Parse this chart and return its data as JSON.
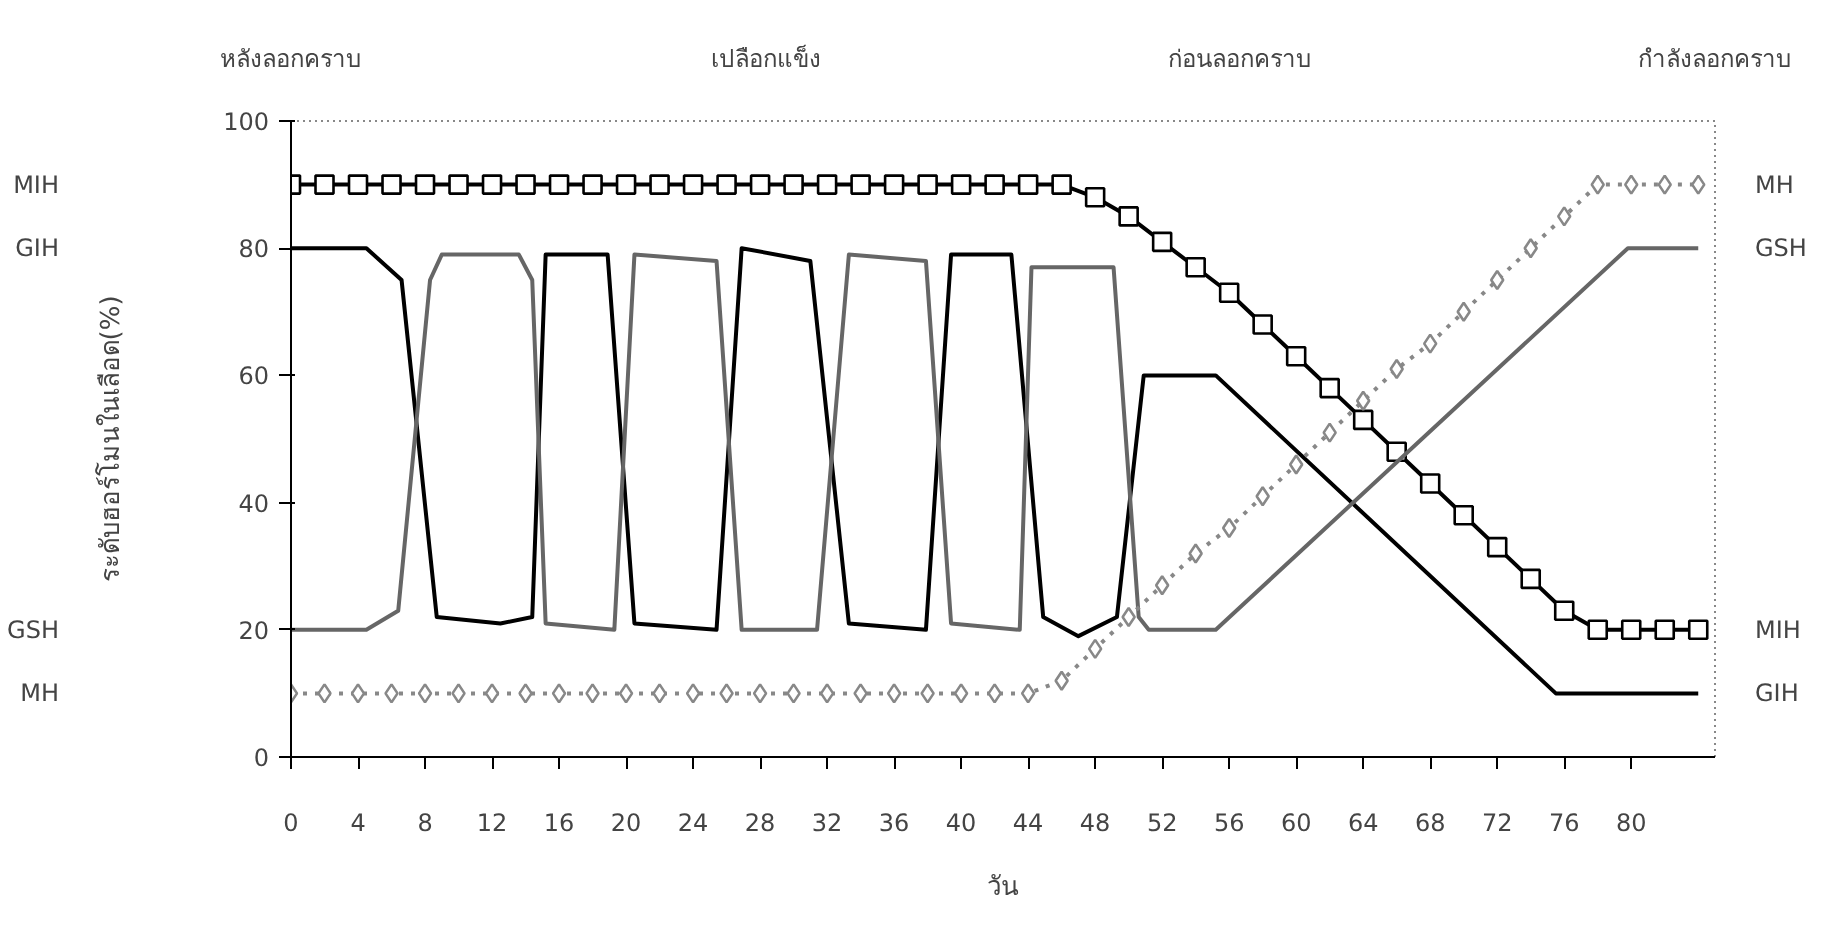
{
  "chart_data": {
    "type": "line",
    "xlabel": "วัน",
    "ylabel": "ระดับฮอร์โมนในเลือด(%)",
    "annotations": [
      "หลังลอกคราบ",
      "เปลือกแข็ง",
      "ก่อนลอกคราบ",
      "กำลังลอกคราบ"
    ],
    "xlim": [
      0,
      85
    ],
    "xticks": [
      0,
      4,
      8,
      12,
      16,
      20,
      24,
      28,
      32,
      36,
      40,
      44,
      48,
      52,
      56,
      60,
      64,
      68,
      72,
      76,
      80
    ],
    "ylim": [
      0,
      100
    ],
    "yticks": [
      0,
      20,
      40,
      60,
      80,
      100
    ],
    "grid": false,
    "series": [
      {
        "name": "MIH",
        "color": "#000000",
        "marker": "square",
        "line_style": "solid",
        "x": [
          0,
          2,
          4,
          6,
          8,
          10,
          12,
          14,
          16,
          18,
          20,
          22,
          24,
          26,
          28,
          30,
          32,
          34,
          36,
          38,
          40,
          42,
          44,
          46,
          48,
          50,
          52,
          54,
          56,
          58,
          60,
          62,
          64,
          66,
          68,
          70,
          72,
          74,
          76,
          78,
          80,
          82,
          84
        ],
        "values": [
          90,
          90,
          90,
          90,
          90,
          90,
          90,
          90,
          90,
          90,
          90,
          90,
          90,
          90,
          90,
          90,
          90,
          90,
          90,
          90,
          90,
          90,
          90,
          90,
          88,
          85,
          81,
          77,
          73,
          68,
          63,
          58,
          53,
          48,
          43,
          38,
          33,
          28,
          23,
          20,
          20,
          20,
          20
        ]
      },
      {
        "name": "GIH",
        "color": "#000000",
        "marker": "none",
        "line_style": "solid",
        "x": [
          0,
          4.5,
          6.6,
          8.7,
          12.5,
          14.4,
          15.2,
          18.9,
          20.5,
          25.4,
          26.9,
          31,
          33.3,
          37.9,
          39.4,
          43,
          44.9,
          47,
          49.3,
          50.9,
          55.2,
          75.5,
          84
        ],
        "values": [
          80,
          80,
          75,
          22,
          21,
          22,
          79,
          79,
          21,
          20,
          80,
          78,
          21,
          20,
          79,
          79,
          22,
          19,
          22,
          60,
          60,
          10,
          10
        ]
      },
      {
        "name": "GSH",
        "color": "#666666",
        "marker": "none",
        "line_style": "solid",
        "x": [
          0,
          4.5,
          6.4,
          8.3,
          9,
          13.6,
          14.4,
          15.2,
          19.3,
          20.5,
          25.4,
          26.9,
          31.4,
          33.3,
          37.9,
          39.4,
          43.5,
          44.2,
          49.1,
          50.6,
          51.2,
          55.2,
          79.8,
          84
        ],
        "values": [
          20,
          20,
          23,
          75,
          79,
          79,
          75,
          21,
          20,
          79,
          78,
          20,
          20,
          79,
          78,
          21,
          20,
          77,
          77,
          22,
          20,
          20,
          80,
          80
        ]
      },
      {
        "name": "MH",
        "color": "#888888",
        "marker": "diamond",
        "line_style": "dotted",
        "x": [
          0,
          2,
          4,
          6,
          8,
          10,
          12,
          14,
          16,
          18,
          20,
          22,
          24,
          26,
          28,
          30,
          32,
          34,
          36,
          38,
          40,
          42,
          44,
          46,
          48,
          50,
          52,
          54,
          56,
          58,
          60,
          62,
          64,
          66,
          68,
          70,
          72,
          74,
          76,
          78,
          80,
          82,
          84
        ],
        "values": [
          10,
          10,
          10,
          10,
          10,
          10,
          10,
          10,
          10,
          10,
          10,
          10,
          10,
          10,
          10,
          10,
          10,
          10,
          10,
          10,
          10,
          10,
          10,
          12,
          17,
          22,
          27,
          32,
          36,
          41,
          46,
          51,
          56,
          61,
          65,
          70,
          75,
          80,
          85,
          90,
          90,
          90,
          90
        ]
      }
    ]
  }
}
